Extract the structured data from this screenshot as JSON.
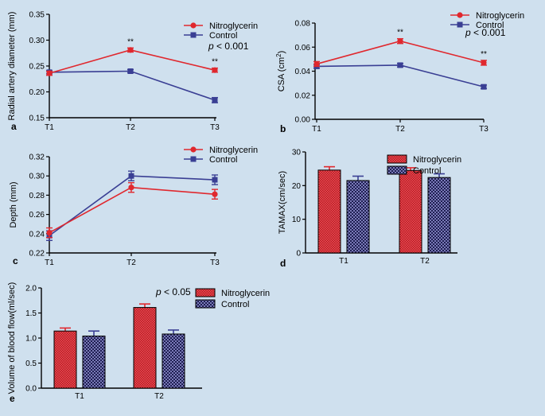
{
  "colors": {
    "background": "#cfe0ee",
    "nitroglycerin": "#e0282e",
    "control": "#3a3f94",
    "nitro_bar": "#c8202a",
    "control_bar": "#2f2f6e"
  },
  "chart_data": [
    {
      "type": "line",
      "panel_label": "a",
      "ylabel": "Radial artery diameter (mm)",
      "categories": [
        "T1",
        "T2",
        "T3"
      ],
      "ylim": [
        0.15,
        0.35
      ],
      "yticks": [
        "0.15",
        "0.20",
        "0.25",
        "0.30",
        "0.35"
      ],
      "series": [
        {
          "name": "Nitroglycerin",
          "values": [
            0.236,
            0.281,
            0.242
          ],
          "errors": [
            0.004,
            0.004,
            0.004
          ]
        },
        {
          "name": "Control",
          "values": [
            0.238,
            0.24,
            0.184
          ],
          "errors": [
            0.003,
            0.003,
            0.005
          ]
        }
      ],
      "markers": [
        "",
        "**",
        "**"
      ],
      "pvalue": "< 0.001"
    },
    {
      "type": "line",
      "panel_label": "b",
      "ylabel": "CSA (cm²)",
      "categories": [
        "T1",
        "T2",
        "T3"
      ],
      "ylim": [
        0.0,
        0.08
      ],
      "yticks": [
        "0.00",
        "0.02",
        "0.04",
        "0.06",
        "0.08"
      ],
      "series": [
        {
          "name": "Nitroglycerin",
          "values": [
            0.046,
            0.065,
            0.047
          ],
          "errors": [
            0.002,
            0.002,
            0.002
          ]
        },
        {
          "name": "Control",
          "values": [
            0.044,
            0.045,
            0.027
          ],
          "errors": [
            0.0015,
            0.0015,
            0.0015
          ]
        }
      ],
      "markers": [
        "",
        "**",
        "**"
      ],
      "pvalue": "< 0.001"
    },
    {
      "type": "line",
      "panel_label": "c",
      "ylabel": "Depth (mm)",
      "categories": [
        "T1",
        "T2",
        "T3"
      ],
      "ylim": [
        0.22,
        0.32
      ],
      "yticks": [
        "0.22",
        "0.24",
        "0.26",
        "0.28",
        "0.30",
        "0.32"
      ],
      "series": [
        {
          "name": "Nitroglycerin",
          "values": [
            0.241,
            0.288,
            0.281
          ],
          "errors": [
            0.005,
            0.005,
            0.005
          ]
        },
        {
          "name": "Control",
          "values": [
            0.238,
            0.3,
            0.296
          ],
          "errors": [
            0.005,
            0.005,
            0.005
          ]
        }
      ],
      "markers": [
        "",
        "",
        ""
      ],
      "pvalue": ""
    },
    {
      "type": "bar",
      "panel_label": "d",
      "ylabel": "TAMAX(cm/sec)",
      "categories": [
        "T1",
        "T2"
      ],
      "ylim": [
        0,
        30
      ],
      "yticks": [
        "0",
        "10",
        "20",
        "30"
      ],
      "series": [
        {
          "name": "Nitroglycerin",
          "values": [
            24.6,
            24.5
          ],
          "errors": [
            1.0,
            0.8
          ]
        },
        {
          "name": "Control",
          "values": [
            21.5,
            22.4
          ],
          "errors": [
            1.3,
            1.1
          ]
        }
      ],
      "pvalue": ""
    },
    {
      "type": "bar",
      "panel_label": "e",
      "ylabel": "Volume of blood flow(ml/sec)",
      "categories": [
        "T1",
        "T2"
      ],
      "ylim": [
        0,
        2.0
      ],
      "yticks": [
        "0.0",
        "0.5",
        "1.0",
        "1.5",
        "2.0"
      ],
      "series": [
        {
          "name": "Nitroglycerin",
          "values": [
            1.14,
            1.61
          ],
          "errors": [
            0.06,
            0.07
          ]
        },
        {
          "name": "Control",
          "values": [
            1.04,
            1.08
          ],
          "errors": [
            0.1,
            0.08
          ]
        }
      ],
      "pvalue": "< 0.05"
    }
  ]
}
